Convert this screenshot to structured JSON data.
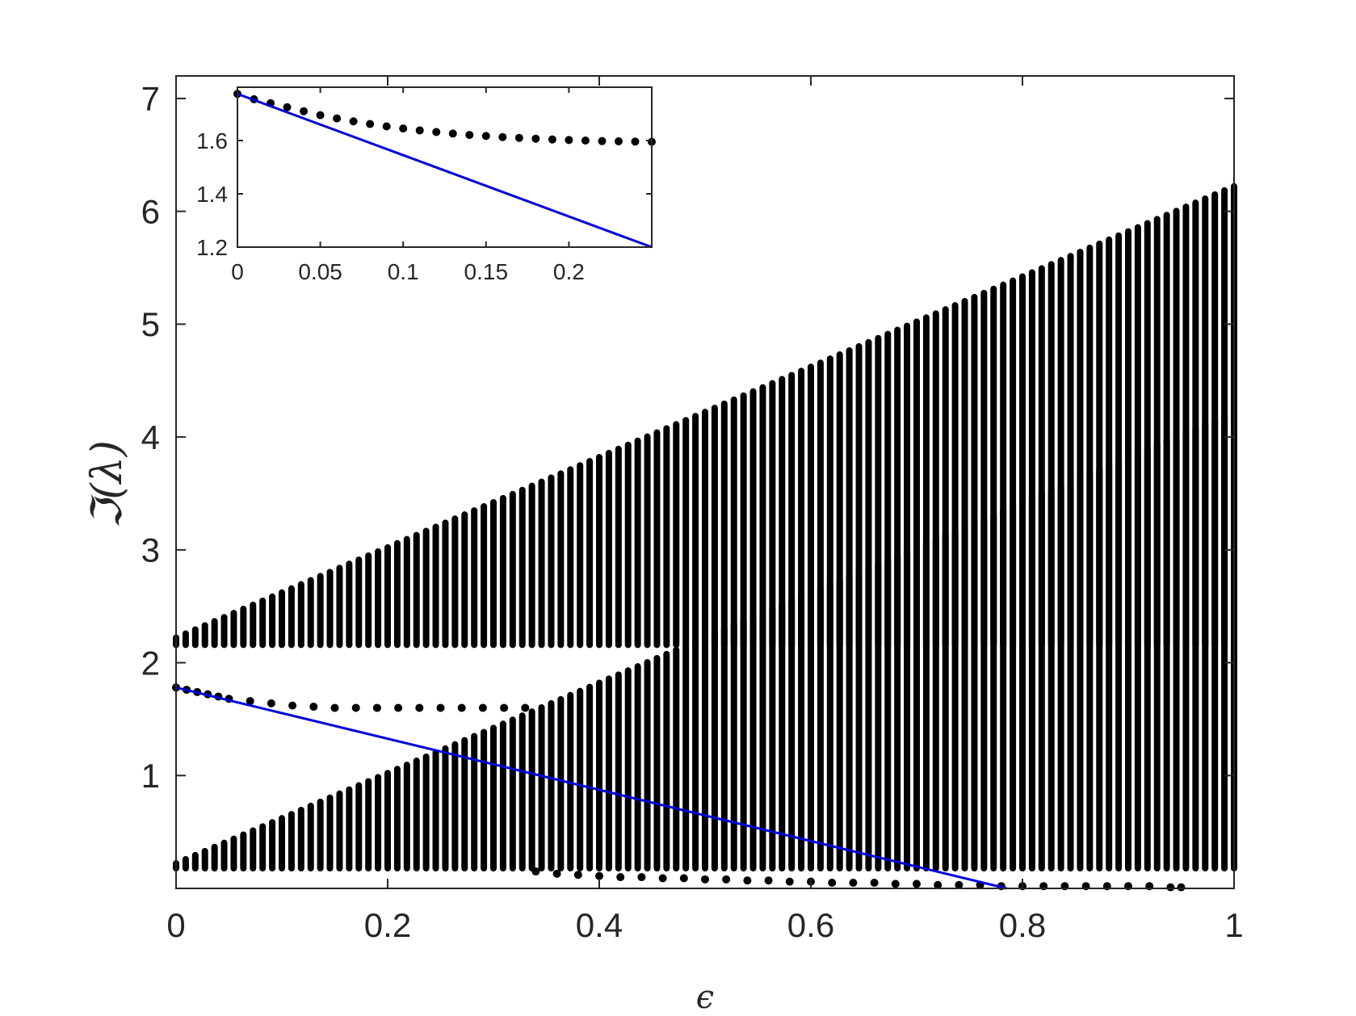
{
  "chart_data": [
    {
      "id": "main",
      "type": "scatter",
      "xlabel": "ϵ",
      "ylabel": "ℑ(λ)",
      "xlim": [
        0,
        1
      ],
      "ylim": [
        0,
        7.2
      ],
      "xticks": [
        0,
        0.2,
        0.4,
        0.6,
        0.8,
        1
      ],
      "xtick_labels": [
        "0",
        "0.2",
        "0.4",
        "0.6",
        "0.8",
        "1"
      ],
      "yticks": [
        1,
        2,
        3,
        4,
        5,
        6,
        7
      ],
      "ytick_labels": [
        "1",
        "2",
        "3",
        "4",
        "5",
        "6",
        "7"
      ],
      "grid": false,
      "series": [
        {
          "kind": "band",
          "color": "#000000",
          "x_range": [
            0,
            1
          ],
          "lower": [
            [
              0,
              2.18
            ],
            [
              1,
              2.18
            ]
          ],
          "upper": [
            [
              0,
              2.2
            ],
            [
              1,
              6.2
            ]
          ]
        },
        {
          "kind": "band",
          "color": "#000000",
          "x_range": [
            0,
            1
          ],
          "lower": [
            [
              0,
              0.2
            ],
            [
              1,
              0.2
            ]
          ],
          "upper": [
            [
              0,
              0.2
            ],
            [
              0.5,
              2.2
            ],
            [
              1,
              4.2
            ]
          ]
        },
        {
          "kind": "points",
          "color": "#000000",
          "x": [
            0,
            0.01,
            0.02,
            0.03,
            0.04,
            0.05,
            0.07,
            0.09,
            0.11,
            0.13,
            0.15,
            0.17,
            0.19,
            0.21,
            0.23,
            0.25,
            0.27,
            0.29,
            0.31,
            0.33
          ],
          "y": [
            1.78,
            1.76,
            1.74,
            1.72,
            1.7,
            1.68,
            1.66,
            1.64,
            1.62,
            1.61,
            1.6,
            1.6,
            1.6,
            1.6,
            1.6,
            1.6,
            1.6,
            1.6,
            1.6,
            1.6
          ]
        },
        {
          "kind": "points",
          "color": "#000000",
          "x": [
            0.34,
            0.36,
            0.38,
            0.4,
            0.42,
            0.44,
            0.46,
            0.48,
            0.5,
            0.52,
            0.54,
            0.56,
            0.58,
            0.6,
            0.62,
            0.64,
            0.66,
            0.68,
            0.7,
            0.72,
            0.74,
            0.76,
            0.78,
            0.8,
            0.82,
            0.84,
            0.86,
            0.88,
            0.9,
            0.92,
            0.94,
            0.95
          ],
          "y": [
            0.15,
            0.13,
            0.12,
            0.11,
            0.1,
            0.1,
            0.09,
            0.09,
            0.08,
            0.08,
            0.07,
            0.07,
            0.06,
            0.06,
            0.05,
            0.05,
            0.05,
            0.04,
            0.04,
            0.03,
            0.03,
            0.03,
            0.02,
            0.02,
            0.02,
            0.02,
            0.02,
            0.02,
            0.02,
            0.02,
            0.01,
            0.01
          ]
        },
        {
          "kind": "line",
          "color": "#0000dd",
          "x": [
            0,
            0.785
          ],
          "y": [
            1.78,
            0
          ]
        }
      ]
    },
    {
      "id": "inset",
      "type": "scatter",
      "xlim": [
        0,
        0.25
      ],
      "ylim": [
        1.2,
        1.8
      ],
      "xticks": [
        0,
        0.05,
        0.1,
        0.15,
        0.2
      ],
      "xtick_labels": [
        "0",
        "0.05",
        "0.1",
        "0.15",
        "0.2"
      ],
      "yticks": [
        1.2,
        1.4,
        1.6
      ],
      "ytick_labels": [
        "1.2",
        "1.4",
        "1.6"
      ],
      "grid": false,
      "series": [
        {
          "kind": "points",
          "color": "#000000",
          "x": [
            0,
            0.01,
            0.02,
            0.03,
            0.04,
            0.05,
            0.06,
            0.07,
            0.08,
            0.09,
            0.1,
            0.11,
            0.12,
            0.13,
            0.14,
            0.15,
            0.16,
            0.17,
            0.18,
            0.19,
            0.2,
            0.21,
            0.22,
            0.23,
            0.24,
            0.25
          ],
          "y": [
            1.775,
            1.755,
            1.74,
            1.725,
            1.71,
            1.695,
            1.683,
            1.672,
            1.662,
            1.653,
            1.645,
            1.638,
            1.632,
            1.626,
            1.621,
            1.617,
            1.613,
            1.61,
            1.607,
            1.604,
            1.602,
            1.6,
            1.598,
            1.597,
            1.596,
            1.595
          ]
        },
        {
          "kind": "line",
          "color": "#0000dd",
          "x": [
            0,
            0.25
          ],
          "y": [
            1.775,
            1.2
          ]
        }
      ]
    }
  ]
}
